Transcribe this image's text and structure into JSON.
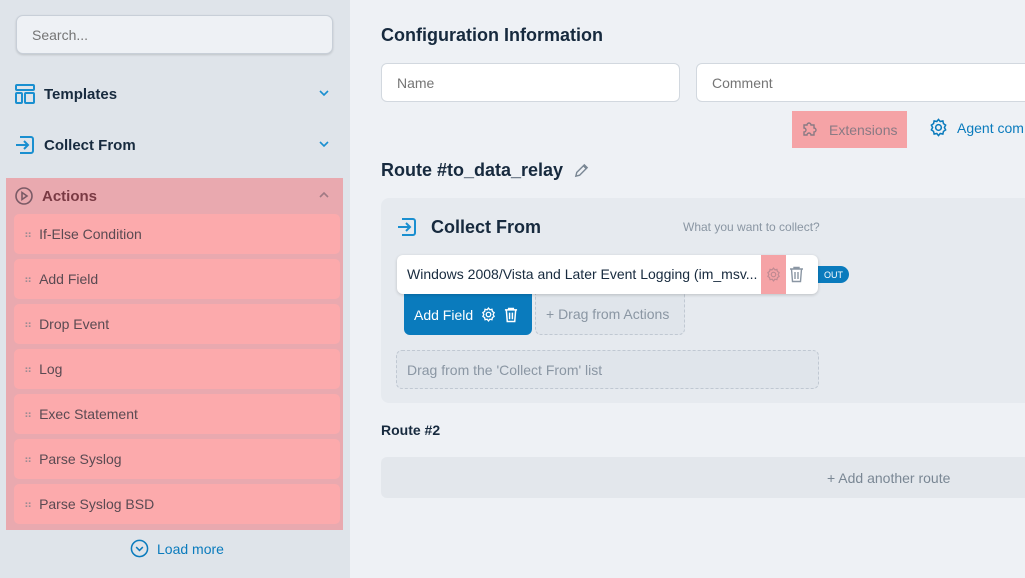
{
  "sidebar": {
    "search_placeholder": "Search...",
    "sections": [
      {
        "label": "Templates",
        "icon": "layout-icon"
      },
      {
        "label": "Collect From",
        "icon": "enter-icon"
      },
      {
        "label": "Actions",
        "icon": "play-circle-icon"
      }
    ],
    "actions": [
      "If-Else Condition",
      "Add Field",
      "Drop Event",
      "Log",
      "Exec Statement",
      "Parse Syslog",
      "Parse Syslog BSD"
    ],
    "load_more": "Load more"
  },
  "main": {
    "config_title": "Configuration Information",
    "name_placeholder": "Name",
    "comment_placeholder": "Comment",
    "extensions_label": "Extensions",
    "agent_label": "Agent com",
    "route_title": "Route #to_data_relay",
    "collect": {
      "title": "Collect From",
      "hint": "What you want to collect?",
      "source": "Windows 2008/Vista and Later Event Logging (im_msv...",
      "out_badge": "OUT",
      "add_field": "Add Field",
      "drag_actions": "+ Drag from Actions",
      "drag_collect": "Drag from the 'Collect From' list"
    },
    "route2_title": "Route #2",
    "add_route": "+ Add another route"
  },
  "colors": {
    "accent": "#0a7bbd",
    "highlight": "#f5a0a3"
  }
}
